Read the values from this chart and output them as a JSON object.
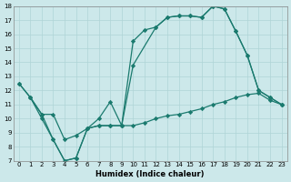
{
  "xlabel": "Humidex (Indice chaleur)",
  "xlim": [
    -0.5,
    23.5
  ],
  "ylim": [
    7,
    18
  ],
  "yticks": [
    7,
    8,
    9,
    10,
    11,
    12,
    13,
    14,
    15,
    16,
    17,
    18
  ],
  "xticks": [
    0,
    1,
    2,
    3,
    4,
    5,
    6,
    7,
    8,
    9,
    10,
    11,
    12,
    13,
    14,
    15,
    16,
    17,
    18,
    19,
    20,
    21,
    22,
    23
  ],
  "line_color": "#1a7a6e",
  "bg_color": "#cce8ea",
  "grid_color": "#afd4d6",
  "line1_x": [
    0,
    1,
    2,
    3,
    4,
    5,
    6,
    7,
    8,
    9,
    10,
    11,
    12,
    13,
    14,
    15,
    16,
    17,
    18,
    19,
    20,
    21,
    22,
    23
  ],
  "line1_y": [
    12.5,
    11.5,
    10.0,
    8.5,
    7.0,
    7.2,
    9.3,
    9.5,
    9.5,
    9.5,
    15.5,
    16.3,
    16.5,
    17.2,
    17.3,
    17.3,
    17.2,
    18.0,
    17.8,
    16.2,
    14.5,
    12.0,
    11.5,
    11.0
  ],
  "line2_x": [
    0,
    1,
    2,
    3,
    4,
    5,
    6,
    7,
    8,
    9,
    10,
    12,
    13,
    14,
    15,
    16,
    17,
    18,
    19,
    20,
    21,
    22,
    23
  ],
  "line2_y": [
    12.5,
    11.5,
    10.3,
    8.5,
    7.0,
    7.2,
    9.3,
    10.0,
    11.2,
    9.5,
    13.8,
    16.5,
    17.2,
    17.3,
    17.3,
    17.2,
    18.0,
    17.8,
    16.2,
    14.5,
    12.0,
    11.5,
    11.0
  ],
  "line3_x": [
    1,
    2,
    3,
    4,
    5,
    6,
    7,
    8,
    9,
    10,
    11,
    12,
    13,
    14,
    15,
    16,
    17,
    18,
    19,
    20,
    21,
    22,
    23
  ],
  "line3_y": [
    11.5,
    10.3,
    10.3,
    8.5,
    8.8,
    9.3,
    9.5,
    9.5,
    9.5,
    9.5,
    9.7,
    10.0,
    10.2,
    10.3,
    10.5,
    10.7,
    11.0,
    11.2,
    11.5,
    11.7,
    11.8,
    11.3,
    11.0
  ]
}
